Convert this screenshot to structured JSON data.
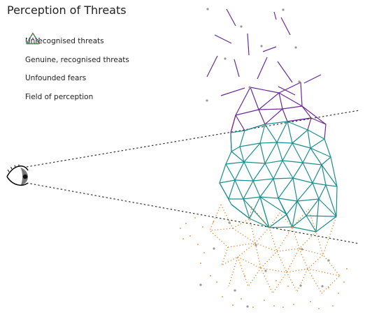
{
  "title": "Perception of Threats",
  "legend": {
    "items": [
      {
        "label": "Unrecognised threats",
        "color": "#6a2a96",
        "symbol": "triangle-solid"
      },
      {
        "label": "Genuine, recognised threats",
        "color": "#1a8f8f",
        "symbol": "triangle-solid"
      },
      {
        "label": "Unfounded fears",
        "color": "#e8801e",
        "symbol": "triangle-dotted"
      },
      {
        "label": "Field of perception",
        "color": "#333333",
        "symbol": "dashed-line"
      }
    ]
  },
  "colors": {
    "unrecognised": "#6a2a96",
    "recognised": "#1a8f8f",
    "unfounded": "#e8801e",
    "perception": "#333333",
    "points": "#999999"
  },
  "icons": {
    "eye": "eye-icon"
  }
}
